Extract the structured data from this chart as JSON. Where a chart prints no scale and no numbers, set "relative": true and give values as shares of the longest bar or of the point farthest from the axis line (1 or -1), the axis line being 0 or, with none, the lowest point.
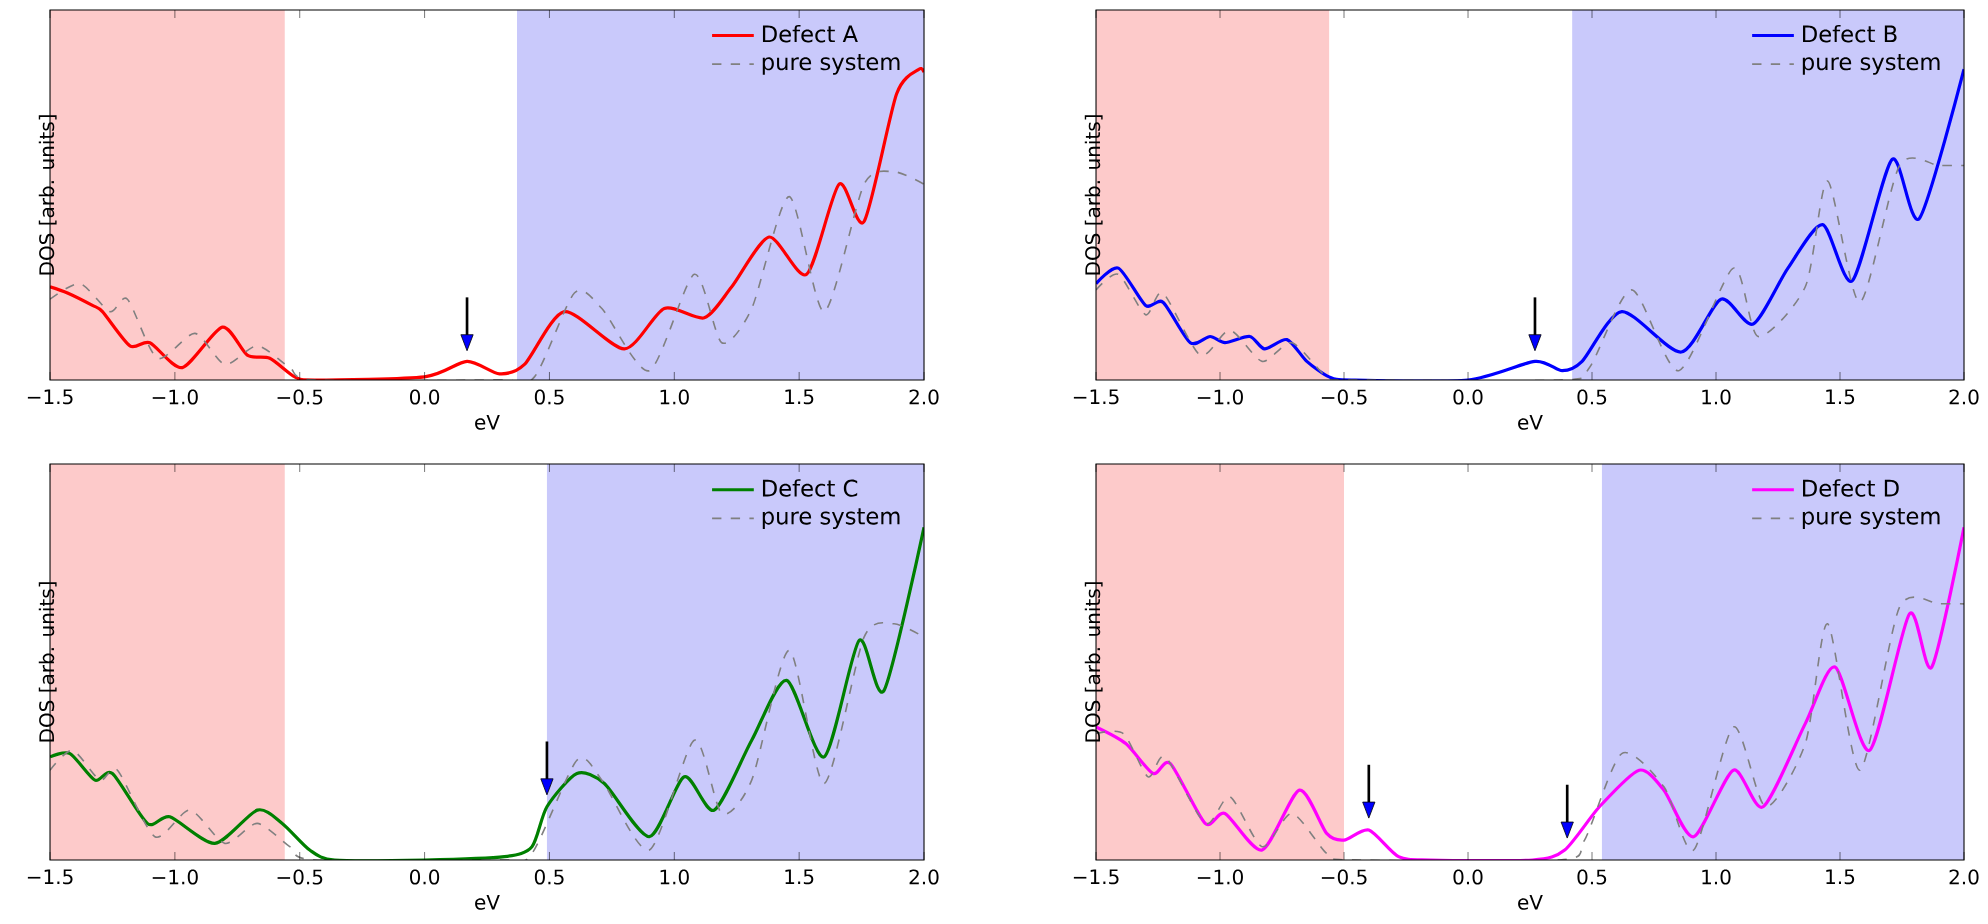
{
  "chart_data": [
    {
      "type": "line",
      "xlabel": "eV",
      "ylabel": "DOS [arb. units]",
      "relative": true,
      "xlim": [
        -1.5,
        2.0
      ],
      "xticks": [
        {
          "value": -1.5,
          "label": "−1.5"
        },
        {
          "value": -1.0,
          "label": "−1.0"
        },
        {
          "value": -0.5,
          "label": "−0.5"
        },
        {
          "value": 0.0,
          "label": "0.0"
        },
        {
          "value": 0.5,
          "label": "0.5"
        },
        {
          "value": 1.0,
          "label": "1.0"
        },
        {
          "value": 1.5,
          "label": "1.5"
        },
        {
          "value": 2.0,
          "label": "2.0"
        }
      ],
      "legend": "top right",
      "grid": false,
      "bands": [
        {
          "axis": "x",
          "from": -1.5,
          "to": -0.56,
          "color": "#fdcaca"
        },
        {
          "axis": "x",
          "from": 0.37,
          "to": 2.0,
          "color": "#c9c9fb"
        }
      ],
      "series": [
        {
          "name": "Defect A",
          "color": "#ff0000",
          "line_style": "solid",
          "x": [
            -1.5,
            -1.43,
            -1.33,
            -1.29,
            -1.18,
            -1.1,
            -0.97,
            -0.81,
            -0.71,
            -0.62,
            -0.52,
            -0.44,
            0.0,
            0.17,
            0.3,
            0.4,
            0.56,
            0.8,
            0.96,
            1.12,
            1.23,
            1.38,
            1.53,
            1.66,
            1.76,
            1.89,
            1.98,
            2.0
          ],
          "values": [
            0.3,
            0.28,
            0.24,
            0.22,
            0.11,
            0.12,
            0.04,
            0.17,
            0.08,
            0.07,
            0.01,
            0.0,
            0.01,
            0.06,
            0.02,
            0.05,
            0.22,
            0.1,
            0.23,
            0.2,
            0.3,
            0.46,
            0.34,
            0.63,
            0.51,
            0.92,
            1.0,
            0.99
          ]
        },
        {
          "name": "pure system",
          "color": "#808080",
          "line_style": "dashed",
          "x": [
            -1.5,
            -1.38,
            -1.26,
            -1.19,
            -1.07,
            -0.92,
            -0.8,
            -0.67,
            -0.54,
            -0.44,
            0.3,
            0.44,
            0.6,
            0.71,
            0.9,
            1.08,
            1.19,
            1.31,
            1.46,
            1.6,
            1.76,
            1.88,
            2.0
          ],
          "values": [
            0.26,
            0.31,
            0.22,
            0.26,
            0.07,
            0.15,
            0.05,
            0.11,
            0.04,
            0.0,
            0.0,
            0.01,
            0.28,
            0.23,
            0.03,
            0.34,
            0.12,
            0.23,
            0.59,
            0.22,
            0.63,
            0.67,
            0.63
          ]
        },
        {
          "type": "scatter",
          "marker": "triangle",
          "color": "#0000ff",
          "x": [
            0.17
          ],
          "values": [
            0.12
          ]
        }
      ]
    },
    {
      "type": "line",
      "xlabel": "eV",
      "ylabel": "DOS [arb. units]",
      "relative": true,
      "xlim": [
        -1.5,
        2.0
      ],
      "xticks": [
        {
          "value": -1.5,
          "label": "−1.5"
        },
        {
          "value": -1.0,
          "label": "−1.0"
        },
        {
          "value": -0.5,
          "label": "−0.5"
        },
        {
          "value": 0.0,
          "label": "0.0"
        },
        {
          "value": 0.5,
          "label": "0.5"
        },
        {
          "value": 1.0,
          "label": "1.0"
        },
        {
          "value": 1.5,
          "label": "1.5"
        },
        {
          "value": 2.0,
          "label": "2.0"
        }
      ],
      "legend": "top right",
      "grid": false,
      "bands": [
        {
          "axis": "x",
          "from": -1.5,
          "to": -0.56,
          "color": "#fdcaca"
        },
        {
          "axis": "x",
          "from": 0.42,
          "to": 2.0,
          "color": "#c9c9fb"
        }
      ],
      "series": [
        {
          "name": "Defect B",
          "color": "#0000ff",
          "line_style": "solid",
          "x": [
            -1.5,
            -1.41,
            -1.3,
            -1.23,
            -1.12,
            -1.04,
            -0.98,
            -0.88,
            -0.82,
            -0.73,
            -0.65,
            -0.56,
            -0.47,
            0.0,
            0.27,
            0.38,
            0.46,
            0.62,
            0.86,
            1.02,
            1.15,
            1.29,
            1.43,
            1.55,
            1.71,
            1.82,
            2.0
          ],
          "values": [
            0.31,
            0.36,
            0.24,
            0.25,
            0.12,
            0.14,
            0.12,
            0.14,
            0.1,
            0.13,
            0.06,
            0.01,
            0.0,
            0.0,
            0.06,
            0.03,
            0.06,
            0.22,
            0.09,
            0.26,
            0.18,
            0.36,
            0.5,
            0.32,
            0.71,
            0.52,
            1.0
          ]
        },
        {
          "name": "pure system",
          "color": "#808080",
          "line_style": "dashed",
          "x": [
            -1.5,
            -1.41,
            -1.3,
            -1.23,
            -1.08,
            -0.96,
            -0.83,
            -0.71,
            -0.57,
            -0.47,
            0.38,
            0.49,
            0.66,
            0.85,
            1.07,
            1.17,
            1.36,
            1.45,
            1.58,
            1.74,
            1.9,
            2.0
          ],
          "values": [
            0.29,
            0.34,
            0.21,
            0.28,
            0.08,
            0.16,
            0.06,
            0.12,
            0.01,
            0.0,
            0.0,
            0.04,
            0.29,
            0.03,
            0.36,
            0.14,
            0.3,
            0.64,
            0.25,
            0.69,
            0.69,
            0.69
          ]
        },
        {
          "type": "scatter",
          "marker": "triangle",
          "color": "#0000ff",
          "x": [
            0.27
          ],
          "values": [
            0.12
          ]
        }
      ]
    },
    {
      "type": "line",
      "xlabel": "eV",
      "ylabel": "DOS [arb. units]",
      "relative": true,
      "xlim": [
        -1.5,
        2.0
      ],
      "xticks": [
        {
          "value": -1.5,
          "label": "−1.5"
        },
        {
          "value": -1.0,
          "label": "−1.0"
        },
        {
          "value": -0.5,
          "label": "−0.5"
        },
        {
          "value": 0.0,
          "label": "0.0"
        },
        {
          "value": 0.5,
          "label": "0.5"
        },
        {
          "value": 1.0,
          "label": "1.0"
        },
        {
          "value": 1.5,
          "label": "1.5"
        },
        {
          "value": 2.0,
          "label": "2.0"
        }
      ],
      "legend": "top right",
      "grid": false,
      "bands": [
        {
          "axis": "x",
          "from": -1.5,
          "to": -0.56,
          "color": "#fdcaca"
        },
        {
          "axis": "x",
          "from": 0.49,
          "to": 2.0,
          "color": "#c9c9fb"
        }
      ],
      "series": [
        {
          "name": "Defect C",
          "color": "#008000",
          "line_style": "solid",
          "x": [
            -1.5,
            -1.42,
            -1.32,
            -1.25,
            -1.11,
            -1.02,
            -0.84,
            -0.67,
            -0.57,
            -0.46,
            -0.36,
            0.0,
            0.32,
            0.43,
            0.49,
            0.61,
            0.72,
            0.9,
            1.04,
            1.16,
            1.31,
            1.45,
            1.6,
            1.74,
            1.84,
            2.0
          ],
          "values": [
            0.31,
            0.32,
            0.24,
            0.26,
            0.11,
            0.13,
            0.05,
            0.15,
            0.11,
            0.03,
            0.0,
            0.0,
            0.01,
            0.04,
            0.16,
            0.26,
            0.23,
            0.07,
            0.25,
            0.15,
            0.36,
            0.54,
            0.31,
            0.66,
            0.51,
            1.0
          ]
        },
        {
          "name": "pure system",
          "color": "#808080",
          "line_style": "dashed",
          "x": [
            -1.5,
            -1.41,
            -1.3,
            -1.23,
            -1.08,
            -0.94,
            -0.8,
            -0.67,
            -0.54,
            -0.44,
            0.3,
            0.43,
            0.61,
            0.71,
            0.9,
            1.08,
            1.19,
            1.31,
            1.46,
            1.6,
            1.76,
            1.88,
            2.0
          ],
          "values": [
            0.27,
            0.33,
            0.24,
            0.27,
            0.07,
            0.15,
            0.05,
            0.11,
            0.04,
            0.0,
            0.0,
            0.02,
            0.3,
            0.24,
            0.03,
            0.36,
            0.14,
            0.24,
            0.63,
            0.23,
            0.67,
            0.71,
            0.67
          ]
        },
        {
          "type": "scatter",
          "marker": "triangle",
          "color": "#0000ff",
          "x": [
            0.49
          ],
          "values": [
            0.22
          ]
        }
      ]
    },
    {
      "type": "line",
      "xlabel": "eV",
      "ylabel": "DOS [arb. units]",
      "relative": true,
      "xlim": [
        -1.5,
        2.0
      ],
      "xticks": [
        {
          "value": -1.5,
          "label": "−1.5"
        },
        {
          "value": -1.0,
          "label": "−1.0"
        },
        {
          "value": -0.5,
          "label": "−0.5"
        },
        {
          "value": 0.0,
          "label": "0.0"
        },
        {
          "value": 0.5,
          "label": "0.5"
        },
        {
          "value": 1.0,
          "label": "1.0"
        },
        {
          "value": 1.5,
          "label": "1.5"
        },
        {
          "value": 2.0,
          "label": "2.0"
        }
      ],
      "legend": "top right",
      "grid": false,
      "bands": [
        {
          "axis": "x",
          "from": -1.5,
          "to": -0.5,
          "color": "#fdcaca"
        },
        {
          "axis": "x",
          "from": 0.54,
          "to": 2.0,
          "color": "#c9c9fb"
        }
      ],
      "series": [
        {
          "name": "Defect D",
          "color": "#ff00ff",
          "line_style": "solid",
          "x": [
            -1.5,
            -1.38,
            -1.27,
            -1.2,
            -1.06,
            -0.98,
            -0.83,
            -0.68,
            -0.57,
            -0.5,
            -0.4,
            -0.28,
            -0.15,
            0.26,
            0.39,
            0.53,
            0.69,
            0.79,
            0.91,
            1.07,
            1.19,
            1.36,
            1.48,
            1.62,
            1.78,
            1.87,
            2.0
          ],
          "values": [
            0.4,
            0.35,
            0.26,
            0.29,
            0.11,
            0.14,
            0.03,
            0.21,
            0.08,
            0.06,
            0.09,
            0.01,
            0.0,
            0.0,
            0.03,
            0.16,
            0.27,
            0.21,
            0.07,
            0.27,
            0.16,
            0.41,
            0.58,
            0.33,
            0.74,
            0.58,
            1.0
          ]
        },
        {
          "name": "pure system",
          "color": "#808080",
          "line_style": "dashed",
          "x": [
            -1.5,
            -1.39,
            -1.29,
            -1.22,
            -1.06,
            -0.96,
            -0.83,
            -0.71,
            -0.57,
            -0.47,
            0.37,
            0.47,
            0.62,
            0.79,
            0.91,
            1.07,
            1.2,
            1.36,
            1.45,
            1.58,
            1.74,
            1.9,
            2.0
          ],
          "values": [
            0.38,
            0.38,
            0.25,
            0.31,
            0.11,
            0.19,
            0.04,
            0.14,
            0.02,
            0.0,
            0.0,
            0.06,
            0.32,
            0.22,
            0.03,
            0.4,
            0.16,
            0.35,
            0.71,
            0.27,
            0.76,
            0.77,
            0.77
          ]
        },
        {
          "type": "scatter",
          "marker": "triangle",
          "color": "#0000ff",
          "x": [
            -0.4,
            0.4
          ],
          "values": [
            0.15,
            0.09
          ]
        }
      ]
    }
  ]
}
